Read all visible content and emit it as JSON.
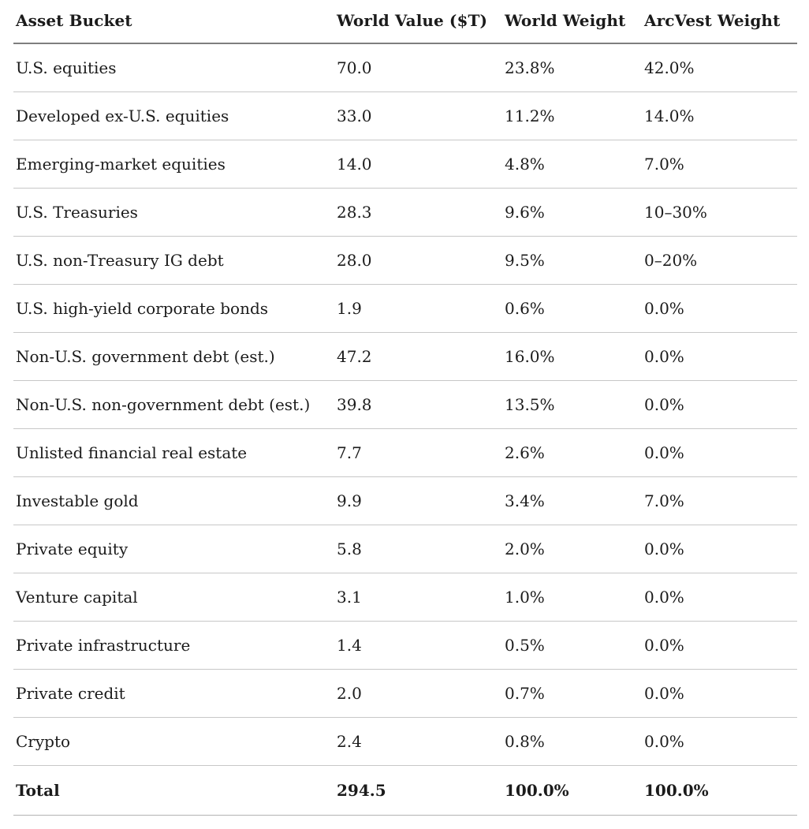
{
  "table": {
    "columns": [
      {
        "key": "asset",
        "label": "Asset Bucket"
      },
      {
        "key": "world_value",
        "label": "World Value ($T)"
      },
      {
        "key": "world_weight",
        "label": "World Weight"
      },
      {
        "key": "arcvest_weight",
        "label": "ArcVest Weight"
      }
    ],
    "rows": [
      {
        "asset": "U.S. equities",
        "world_value": "70.0",
        "world_weight": "23.8%",
        "arcvest_weight": "42.0%"
      },
      {
        "asset": "Developed ex-U.S. equities",
        "world_value": "33.0",
        "world_weight": "11.2%",
        "arcvest_weight": "14.0%"
      },
      {
        "asset": "Emerging-market equities",
        "world_value": "14.0",
        "world_weight": "4.8%",
        "arcvest_weight": "7.0%"
      },
      {
        "asset": "U.S. Treasuries",
        "world_value": "28.3",
        "world_weight": "9.6%",
        "arcvest_weight": "10–30%"
      },
      {
        "asset": "U.S. non-Treasury IG debt",
        "world_value": "28.0",
        "world_weight": "9.5%",
        "arcvest_weight": "0–20%"
      },
      {
        "asset": "U.S. high-yield corporate bonds",
        "world_value": "1.9",
        "world_weight": "0.6%",
        "arcvest_weight": "0.0%"
      },
      {
        "asset": "Non-U.S. government debt (est.)",
        "world_value": "47.2",
        "world_weight": "16.0%",
        "arcvest_weight": "0.0%"
      },
      {
        "asset": "Non-U.S. non-government debt (est.)",
        "world_value": "39.8",
        "world_weight": "13.5%",
        "arcvest_weight": "0.0%"
      },
      {
        "asset": "Unlisted financial real estate",
        "world_value": "7.7",
        "world_weight": "2.6%",
        "arcvest_weight": "0.0%"
      },
      {
        "asset": "Investable gold",
        "world_value": "9.9",
        "world_weight": "3.4%",
        "arcvest_weight": "7.0%"
      },
      {
        "asset": "Private equity",
        "world_value": "5.8",
        "world_weight": "2.0%",
        "arcvest_weight": "0.0%"
      },
      {
        "asset": "Venture capital",
        "world_value": "3.1",
        "world_weight": "1.0%",
        "arcvest_weight": "0.0%"
      },
      {
        "asset": "Private infrastructure",
        "world_value": "1.4",
        "world_weight": "0.5%",
        "arcvest_weight": "0.0%"
      },
      {
        "asset": "Private credit",
        "world_value": "2.0",
        "world_weight": "0.7%",
        "arcvest_weight": "0.0%"
      },
      {
        "asset": "Crypto",
        "world_value": "2.4",
        "world_weight": "0.8%",
        "arcvest_weight": "0.0%"
      }
    ],
    "total": {
      "asset": "Total",
      "world_value": "294.5",
      "world_weight": "100.0%",
      "arcvest_weight": "100.0%"
    }
  },
  "colors": {
    "text": "#1b1b1b",
    "header_rule": "#7e7e7e",
    "row_rule": "#c7c7c7",
    "total_rule": "#b3b3b3",
    "background": "#ffffff"
  }
}
